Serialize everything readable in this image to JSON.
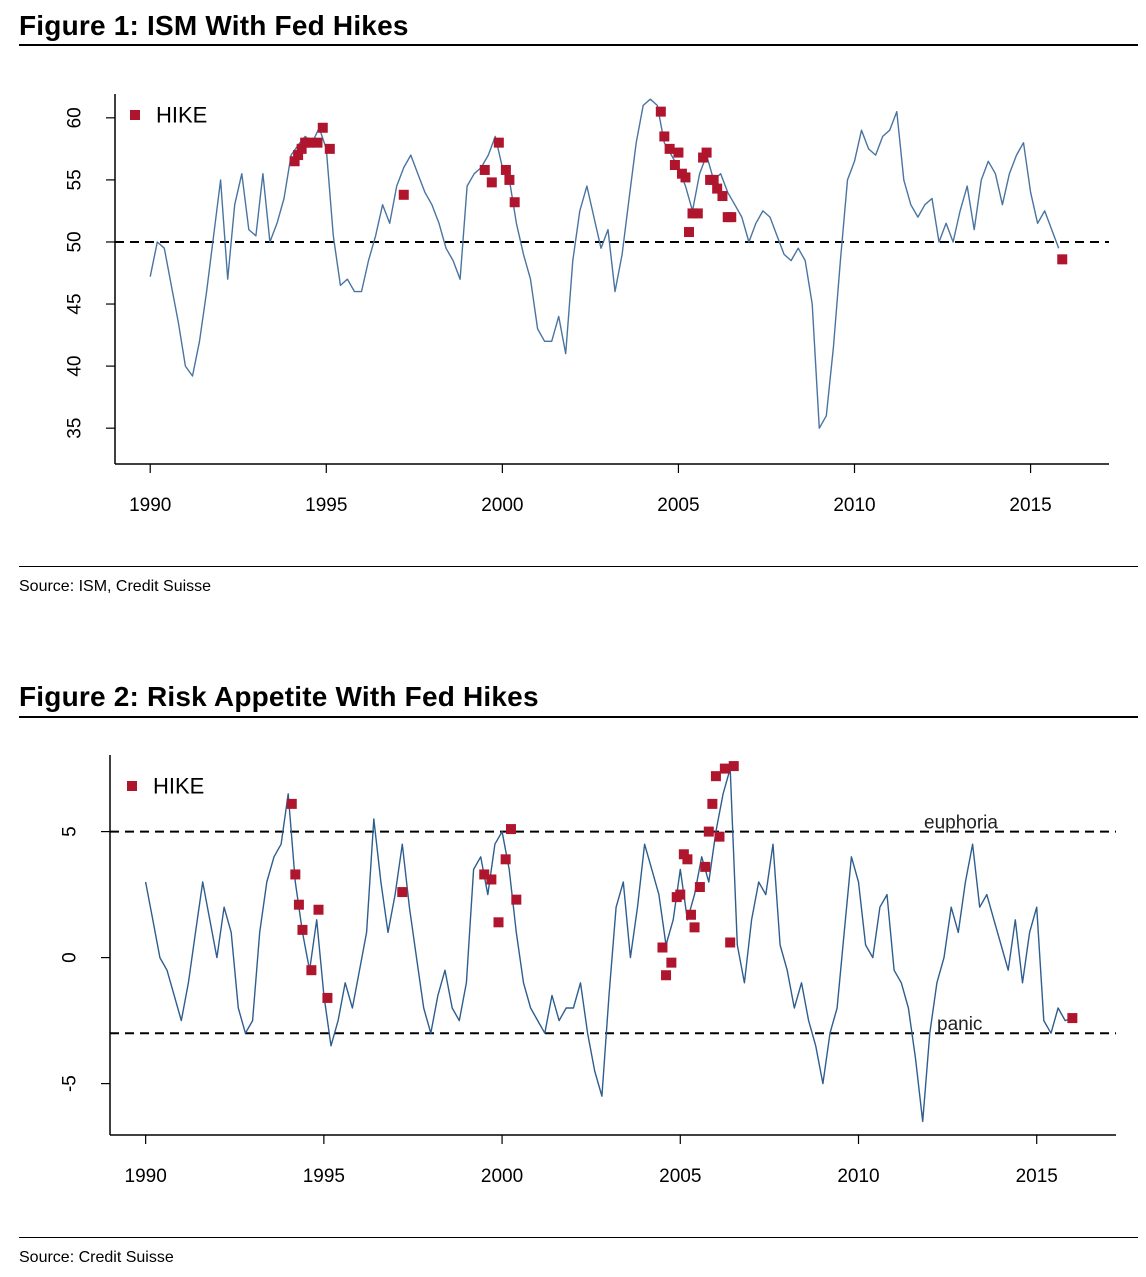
{
  "chart_data": [
    {
      "type": "line",
      "title": "Figure 1: ISM With Fed Hikes",
      "source": "Source: ISM, Credit Suisse",
      "legend": "HIKE",
      "legend_position": "top-left",
      "xlim": [
        1989,
        2017
      ],
      "ylim": [
        33,
        62
      ],
      "xticks": [
        "1990",
        "1995",
        "2000",
        "2005",
        "2010",
        "2015"
      ],
      "yticks": [
        "60",
        "55",
        "50",
        "45",
        "40",
        "35"
      ],
      "reference_lines": [
        {
          "y": 50,
          "label": ""
        }
      ],
      "colors": {
        "line": "#4a74a0",
        "hike": "#b0152e",
        "reference": "#000000"
      },
      "series": [
        {
          "name": "ISM",
          "x": [
            1990.0,
            1990.2,
            1990.4,
            1990.6,
            1990.8,
            1991.0,
            1991.2,
            1991.4,
            1991.6,
            1991.8,
            1992.0,
            1992.2,
            1992.4,
            1992.6,
            1992.8,
            1993.0,
            1993.2,
            1993.4,
            1993.6,
            1993.8,
            1994.0,
            1994.2,
            1994.4,
            1994.6,
            1994.8,
            1995.0,
            1995.2,
            1995.4,
            1995.6,
            1995.8,
            1996.0,
            1996.2,
            1996.4,
            1996.6,
            1996.8,
            1997.0,
            1997.2,
            1997.4,
            1997.6,
            1997.8,
            1998.0,
            1998.2,
            1998.4,
            1998.6,
            1998.8,
            1999.0,
            1999.2,
            1999.4,
            1999.6,
            1999.8,
            2000.0,
            2000.2,
            2000.4,
            2000.6,
            2000.8,
            2001.0,
            2001.2,
            2001.4,
            2001.6,
            2001.8,
            2002.0,
            2002.2,
            2002.4,
            2002.6,
            2002.8,
            2003.0,
            2003.2,
            2003.4,
            2003.6,
            2003.8,
            2004.0,
            2004.2,
            2004.4,
            2004.6,
            2004.8,
            2005.0,
            2005.2,
            2005.4,
            2005.6,
            2005.8,
            2006.0,
            2006.2,
            2006.4,
            2006.6,
            2006.8,
            2007.0,
            2007.2,
            2007.4,
            2007.6,
            2007.8,
            2008.0,
            2008.2,
            2008.4,
            2008.6,
            2008.8,
            2009.0,
            2009.2,
            2009.4,
            2009.6,
            2009.8,
            2010.0,
            2010.2,
            2010.4,
            2010.6,
            2010.8,
            2011.0,
            2011.2,
            2011.4,
            2011.6,
            2011.8,
            2012.0,
            2012.2,
            2012.4,
            2012.6,
            2012.8,
            2013.0,
            2013.2,
            2013.4,
            2013.6,
            2013.8,
            2014.0,
            2014.2,
            2014.4,
            2014.6,
            2014.8,
            2015.0,
            2015.2,
            2015.4,
            2015.6,
            2015.8
          ],
          "y": [
            47.2,
            50.0,
            49.5,
            46.5,
            43.5,
            40.0,
            39.2,
            42.0,
            46.0,
            50.5,
            55.0,
            47.0,
            53.0,
            55.5,
            51.0,
            50.5,
            55.5,
            50.0,
            51.5,
            53.5,
            57.0,
            57.8,
            58.5,
            58.0,
            59.2,
            57.5,
            50.5,
            46.5,
            47.0,
            46.0,
            46.0,
            48.5,
            50.5,
            53.0,
            51.5,
            54.5,
            56.0,
            57.0,
            55.5,
            54.0,
            53.0,
            51.5,
            49.5,
            48.5,
            47.0,
            54.5,
            55.5,
            56.0,
            57.0,
            58.5,
            56.0,
            55.0,
            51.5,
            49.0,
            47.0,
            43.0,
            42.0,
            42.0,
            44.0,
            41.0,
            48.5,
            52.5,
            54.5,
            52.0,
            49.5,
            51.0,
            46.0,
            49.0,
            53.5,
            58.0,
            61.0,
            61.5,
            61.0,
            58.0,
            57.0,
            56.0,
            54.5,
            52.5,
            55.5,
            57.0,
            55.0,
            55.5,
            54.0,
            53.0,
            52.0,
            50.0,
            51.5,
            52.5,
            52.0,
            50.5,
            49.0,
            48.5,
            49.5,
            48.5,
            45.0,
            35.0,
            36.0,
            41.5,
            48.5,
            55.0,
            56.5,
            59.0,
            57.5,
            57.0,
            58.5,
            59.0,
            60.5,
            55.0,
            53.0,
            52.0,
            53.0,
            53.5,
            50.0,
            51.5,
            50.0,
            52.5,
            54.5,
            51.0,
            55.0,
            56.5,
            55.5,
            53.0,
            55.5,
            57.0,
            58.0,
            54.0,
            51.5,
            52.5,
            51.0,
            49.5
          ]
        },
        {
          "name": "HIKE",
          "x": [
            1994.1,
            1994.2,
            1994.3,
            1994.4,
            1994.5,
            1994.75,
            1994.9,
            1995.1,
            1997.2,
            1999.5,
            1999.7,
            1999.9,
            2000.1,
            2000.2,
            2000.35,
            2004.5,
            2004.6,
            2004.75,
            2004.9,
            2005.0,
            2005.1,
            2005.2,
            2005.3,
            2005.4,
            2005.55,
            2005.7,
            2005.8,
            2005.9,
            2006.0,
            2006.1,
            2006.25,
            2006.4,
            2006.5,
            2015.9
          ],
          "y": [
            56.5,
            57.0,
            57.5,
            58.0,
            58.0,
            58.0,
            59.2,
            57.5,
            53.8,
            55.8,
            54.8,
            58.0,
            55.8,
            55.0,
            53.2,
            60.5,
            58.5,
            57.5,
            56.2,
            57.2,
            55.5,
            55.2,
            50.8,
            52.3,
            52.3,
            56.8,
            57.2,
            55.0,
            55.0,
            54.3,
            53.7,
            52.0,
            52.0,
            48.6
          ]
        }
      ]
    },
    {
      "type": "line",
      "title": "Figure 2: Risk Appetite With Fed Hikes",
      "source": "Source: Credit Suisse",
      "legend": "HIKE",
      "legend_position": "top-left",
      "xlim": [
        1989,
        2017
      ],
      "ylim": [
        -7,
        8
      ],
      "xticks": [
        "1990",
        "1995",
        "2000",
        "2005",
        "2010",
        "2015"
      ],
      "yticks": [
        "5",
        "0",
        "-5"
      ],
      "reference_lines": [
        {
          "y": 5,
          "label": "euphoria"
        },
        {
          "y": -3,
          "label": "panic"
        }
      ],
      "colors": {
        "line": "#2e5e8e",
        "hike": "#b0152e",
        "reference": "#000000"
      },
      "series": [
        {
          "name": "Risk Appetite",
          "x": [
            1990.0,
            1990.2,
            1990.4,
            1990.6,
            1990.8,
            1991.0,
            1991.2,
            1991.4,
            1991.6,
            1991.8,
            1992.0,
            1992.2,
            1992.4,
            1992.6,
            1992.8,
            1993.0,
            1993.2,
            1993.4,
            1993.6,
            1993.8,
            1994.0,
            1994.2,
            1994.4,
            1994.6,
            1994.8,
            1995.0,
            1995.2,
            1995.4,
            1995.6,
            1995.8,
            1996.0,
            1996.2,
            1996.4,
            1996.6,
            1996.8,
            1997.0,
            1997.2,
            1997.4,
            1997.6,
            1997.8,
            1998.0,
            1998.2,
            1998.4,
            1998.6,
            1998.8,
            1999.0,
            1999.2,
            1999.4,
            1999.6,
            1999.8,
            2000.0,
            2000.2,
            2000.4,
            2000.6,
            2000.8,
            2001.0,
            2001.2,
            2001.4,
            2001.6,
            2001.8,
            2002.0,
            2002.2,
            2002.4,
            2002.6,
            2002.8,
            2003.0,
            2003.2,
            2003.4,
            2003.6,
            2003.8,
            2004.0,
            2004.2,
            2004.4,
            2004.6,
            2004.8,
            2005.0,
            2005.2,
            2005.4,
            2005.6,
            2005.8,
            2006.0,
            2006.2,
            2006.4,
            2006.6,
            2006.8,
            2007.0,
            2007.2,
            2007.4,
            2007.6,
            2007.8,
            2008.0,
            2008.2,
            2008.4,
            2008.6,
            2008.8,
            2009.0,
            2009.2,
            2009.4,
            2009.6,
            2009.8,
            2010.0,
            2010.2,
            2010.4,
            2010.6,
            2010.8,
            2011.0,
            2011.2,
            2011.4,
            2011.6,
            2011.8,
            2012.0,
            2012.2,
            2012.4,
            2012.6,
            2012.8,
            2013.0,
            2013.2,
            2013.4,
            2013.6,
            2013.8,
            2014.0,
            2014.2,
            2014.4,
            2014.6,
            2014.8,
            2015.0,
            2015.2,
            2015.4,
            2015.6,
            2015.8,
            2016.0
          ],
          "y": [
            3.0,
            1.5,
            0.0,
            -0.5,
            -1.5,
            -2.5,
            -1.0,
            1.0,
            3.0,
            1.5,
            0.0,
            2.0,
            1.0,
            -2.0,
            -3.0,
            -2.5,
            1.0,
            3.0,
            4.0,
            4.5,
            6.5,
            3.0,
            1.0,
            -0.5,
            1.5,
            -1.5,
            -3.5,
            -2.5,
            -1.0,
            -2.0,
            -0.5,
            1.0,
            5.5,
            3.0,
            1.0,
            2.5,
            4.5,
            2.0,
            0.0,
            -2.0,
            -3.0,
            -1.5,
            -0.5,
            -2.0,
            -2.5,
            -1.0,
            3.5,
            4.0,
            2.5,
            4.5,
            5.0,
            3.5,
            1.0,
            -1.0,
            -2.0,
            -2.5,
            -3.0,
            -1.5,
            -2.5,
            -2.0,
            -2.0,
            -1.0,
            -3.0,
            -4.5,
            -5.5,
            -1.5,
            2.0,
            3.0,
            0.0,
            2.0,
            4.5,
            3.5,
            2.5,
            0.5,
            1.5,
            3.5,
            1.5,
            2.5,
            4.0,
            3.0,
            5.0,
            6.5,
            7.5,
            0.5,
            -1.0,
            1.5,
            3.0,
            2.5,
            4.5,
            0.5,
            -0.5,
            -2.0,
            -1.0,
            -2.5,
            -3.5,
            -5.0,
            -3.0,
            -2.0,
            1.0,
            4.0,
            3.0,
            0.5,
            0.0,
            2.0,
            2.5,
            -0.5,
            -1.0,
            -2.0,
            -4.0,
            -6.5,
            -3.0,
            -1.0,
            0.0,
            2.0,
            1.0,
            3.0,
            4.5,
            2.0,
            2.5,
            1.5,
            0.5,
            -0.5,
            1.5,
            -1.0,
            1.0,
            2.0,
            -2.5,
            -3.0,
            -2.0,
            -2.5,
            -2.4
          ]
        },
        {
          "name": "HIKE",
          "x": [
            1994.1,
            1994.2,
            1994.3,
            1994.4,
            1994.65,
            1994.85,
            1995.1,
            1997.2,
            1999.5,
            1999.7,
            1999.9,
            2000.1,
            2000.25,
            2000.4,
            2004.5,
            2004.6,
            2004.75,
            2004.9,
            2005.0,
            2005.1,
            2005.2,
            2005.3,
            2005.4,
            2005.55,
            2005.7,
            2005.8,
            2005.9,
            2006.0,
            2006.1,
            2006.25,
            2006.4,
            2006.5,
            2016.0
          ],
          "y": [
            6.1,
            3.3,
            2.1,
            1.1,
            -0.5,
            1.9,
            -1.6,
            2.6,
            3.3,
            3.1,
            1.4,
            3.9,
            5.1,
            2.3,
            0.4,
            -0.7,
            -0.2,
            2.4,
            2.5,
            4.1,
            3.9,
            1.7,
            1.2,
            2.8,
            3.6,
            5.0,
            6.1,
            7.2,
            4.8,
            7.5,
            0.6,
            7.6,
            -2.4
          ]
        }
      ]
    }
  ]
}
